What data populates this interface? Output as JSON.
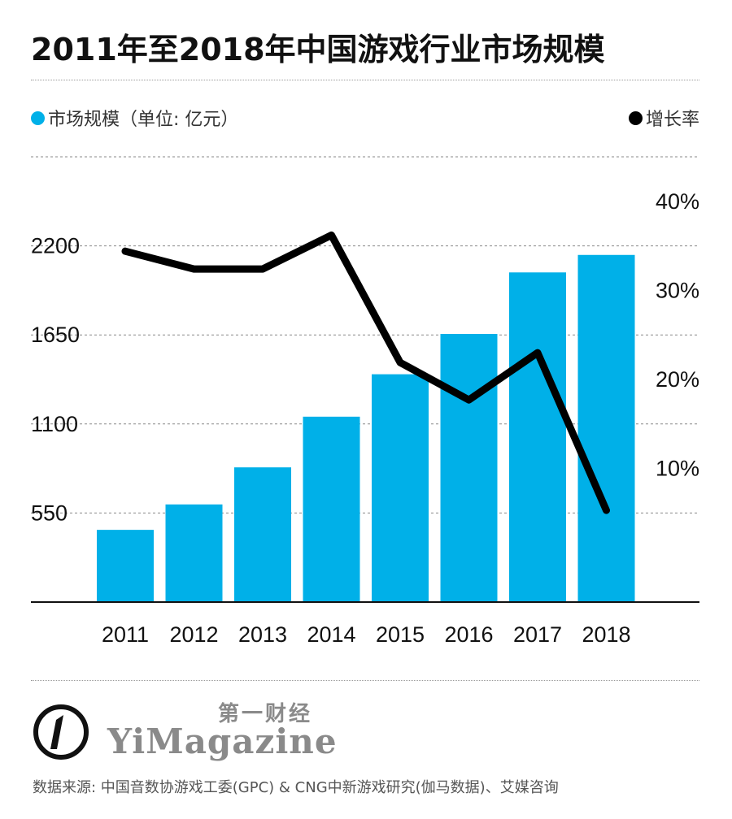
{
  "title": "2011年至2018年中国游戏行业市场规模",
  "legend": {
    "left_label": "市场规模（单位: 亿元）",
    "right_label": "增长率",
    "bar_color": "#00b0e8",
    "line_color": "#000000"
  },
  "chart_data": {
    "type": "bar+line",
    "categories": [
      "2011",
      "2012",
      "2013",
      "2014",
      "2015",
      "2016",
      "2017",
      "2018"
    ],
    "series": [
      {
        "name": "市场规模（单位: 亿元）",
        "type": "bar",
        "axis": "left",
        "values": [
          446,
          603,
          832,
          1145,
          1407,
          1656,
          2036,
          2144
        ]
      },
      {
        "name": "增长率",
        "type": "line",
        "axis": "right",
        "values": [
          34.4,
          32.4,
          32.4,
          36.2,
          21.9,
          17.7,
          23.0,
          5.3
        ]
      }
    ],
    "left_axis": {
      "ticks": [
        "550",
        "1100",
        "1650",
        "2200"
      ],
      "ylim": [
        0,
        2750
      ]
    },
    "right_axis": {
      "ticks": [
        "10%",
        "20%",
        "30%",
        "40%"
      ],
      "ylim": [
        -5,
        45
      ]
    },
    "grid": true
  },
  "logo": {
    "cn": "第一财经",
    "en": "YiMagazine"
  },
  "source": "数据来源: 中国音数协游戏工委(GPC) & CNG中新游戏研究(伽马数据)、艾媒咨询"
}
